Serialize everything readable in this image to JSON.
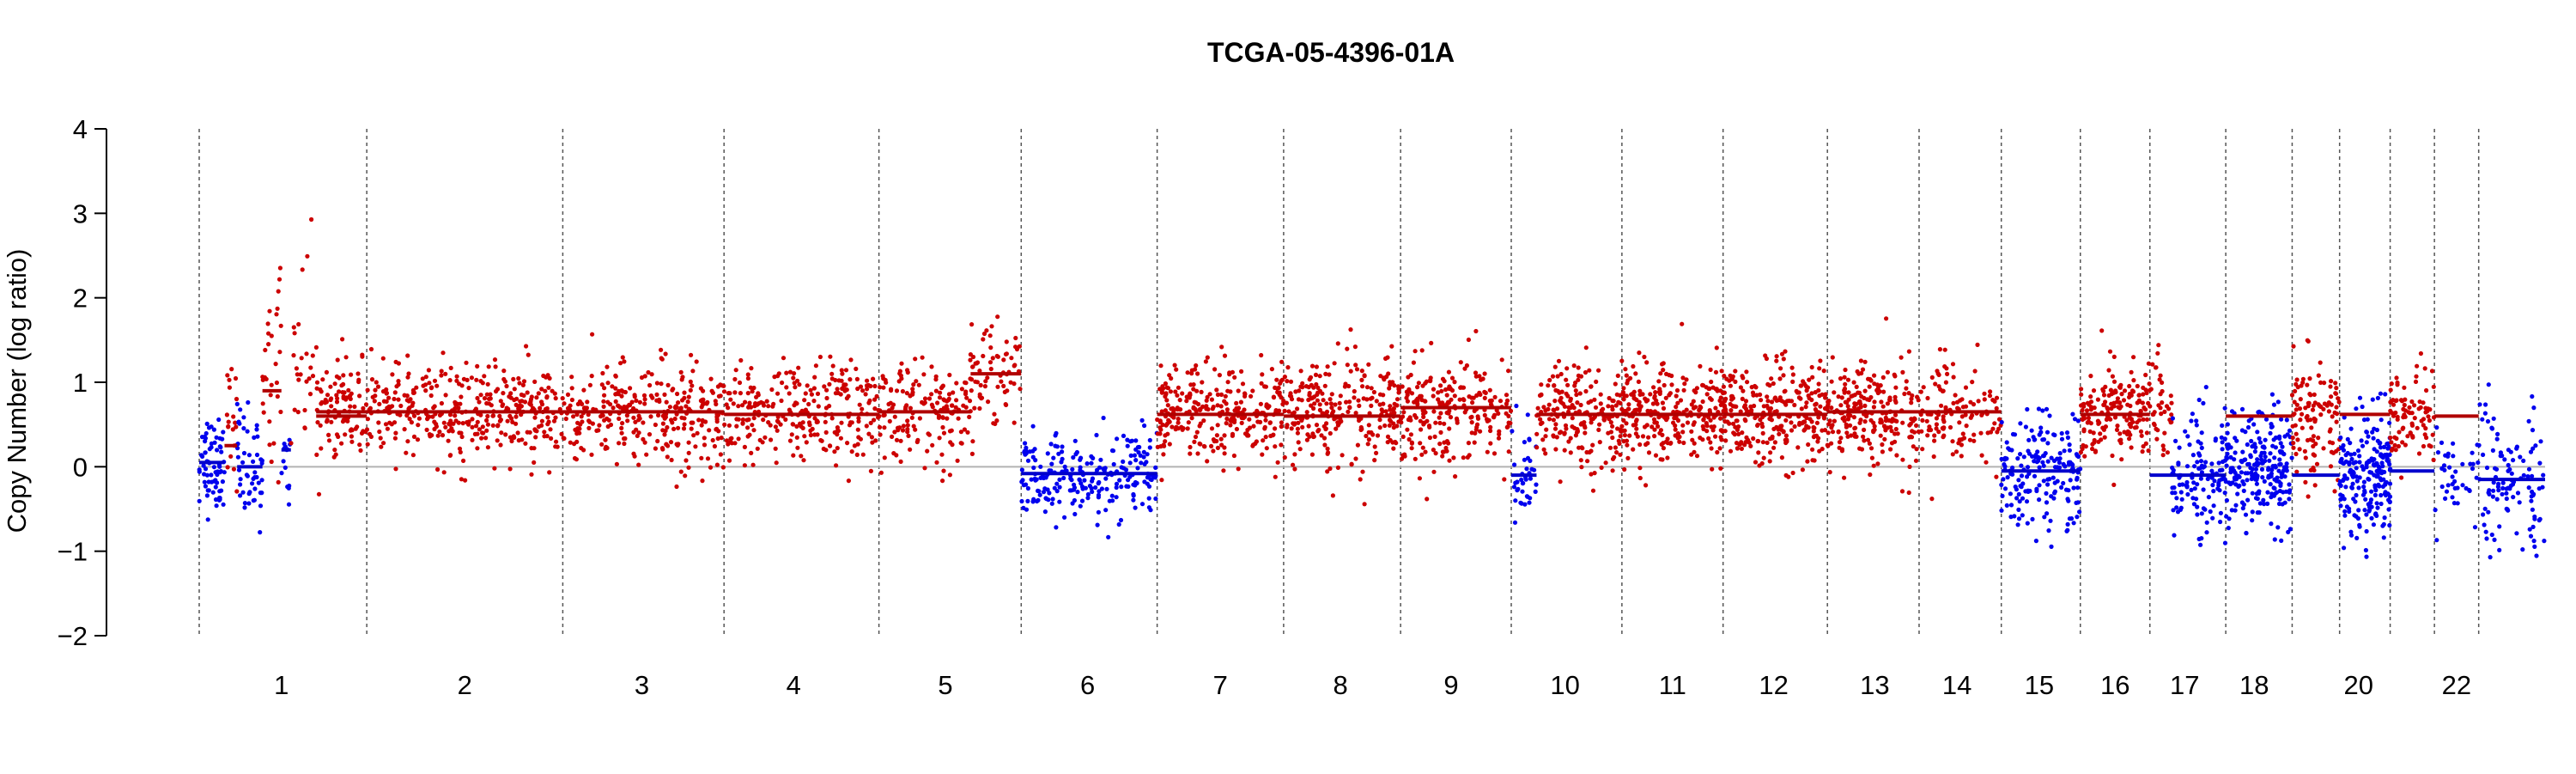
{
  "chart_data": {
    "type": "scatter",
    "title": "TCGA-05-4396-01A",
    "xlabel": "",
    "ylabel": "Copy Number (log ratio)",
    "ylim": [
      -2,
      4
    ],
    "yticks": [
      -2,
      -1,
      0,
      1,
      2,
      3,
      4
    ],
    "baseline": 0,
    "colors": {
      "gain": "#cc0000",
      "loss": "#0000ee",
      "segment_gain": "#b00000",
      "segment_loss": "#0000cc",
      "baseline": "#b3b3b3",
      "separator": "#555555"
    },
    "x_unit": "genome position (relative)",
    "chromosome_boundaries": [
      0,
      5.3,
      11.5,
      16.6,
      21.5,
      26,
      30.3,
      34.3,
      38.0,
      41.5,
      45.0,
      48.2,
      51.5,
      54.4,
      57.0,
      59.5,
      61.7,
      64.1,
      66.2,
      67.7,
      69.3,
      70.7,
      72.1
    ],
    "chromosome_labels": [
      {
        "label": "1",
        "x": 2.6
      },
      {
        "label": "2",
        "x": 8.4
      },
      {
        "label": "3",
        "x": 14.0
      },
      {
        "label": "4",
        "x": 18.8
      },
      {
        "label": "5",
        "x": 23.6
      },
      {
        "label": "6",
        "x": 28.1
      },
      {
        "label": "7",
        "x": 32.3
      },
      {
        "label": "8",
        "x": 36.1
      },
      {
        "label": "9",
        "x": 39.6
      },
      {
        "label": "10",
        "x": 43.2
      },
      {
        "label": "11",
        "x": 46.6
      },
      {
        "label": "12",
        "x": 49.8
      },
      {
        "label": "13",
        "x": 53.0
      },
      {
        "label": "14",
        "x": 55.6
      },
      {
        "label": "15",
        "x": 58.2
      },
      {
        "label": "16",
        "x": 60.6
      },
      {
        "label": "17",
        "x": 62.8
      },
      {
        "label": "18",
        "x": 65.0
      },
      {
        "label": "20",
        "x": 68.3
      },
      {
        "label": "22",
        "x": 71.4
      }
    ],
    "segments": [
      {
        "x0": 0.0,
        "x1": 0.8,
        "value": 0.05,
        "call": "loss"
      },
      {
        "x0": 0.8,
        "x1": 1.2,
        "value": 0.25,
        "call": "gain"
      },
      {
        "x0": 1.2,
        "x1": 2.0,
        "value": 0.0,
        "call": "loss"
      },
      {
        "x0": 2.0,
        "x1": 2.6,
        "value": 0.9,
        "call": "gain"
      },
      {
        "x0": 2.6,
        "x1": 2.9,
        "value": 0.2,
        "call": "loss"
      },
      {
        "x0": 3.7,
        "x1": 5.3,
        "value": 0.6,
        "call": "gain"
      },
      {
        "x0": 3.7,
        "x1": 11.5,
        "value": 0.65,
        "call": "gain"
      },
      {
        "x0": 11.5,
        "x1": 16.6,
        "value": 0.65,
        "call": "gain"
      },
      {
        "x0": 16.6,
        "x1": 21.5,
        "value": 0.62,
        "call": "gain"
      },
      {
        "x0": 21.5,
        "x1": 24.4,
        "value": 0.65,
        "call": "gain"
      },
      {
        "x0": 24.4,
        "x1": 26.0,
        "value": 1.1,
        "call": "gain"
      },
      {
        "x0": 26.0,
        "x1": 30.3,
        "value": -0.08,
        "call": "loss"
      },
      {
        "x0": 30.3,
        "x1": 34.3,
        "value": 0.62,
        "call": "gain"
      },
      {
        "x0": 34.3,
        "x1": 38.0,
        "value": 0.6,
        "call": "gain"
      },
      {
        "x0": 38.0,
        "x1": 41.5,
        "value": 0.7,
        "call": "gain"
      },
      {
        "x0": 41.5,
        "x1": 42.3,
        "value": -0.1,
        "call": "loss"
      },
      {
        "x0": 42.3,
        "x1": 45.0,
        "value": 0.62,
        "call": "gain"
      },
      {
        "x0": 45.0,
        "x1": 48.2,
        "value": 0.62,
        "call": "gain"
      },
      {
        "x0": 48.2,
        "x1": 51.5,
        "value": 0.62,
        "call": "gain"
      },
      {
        "x0": 51.5,
        "x1": 54.4,
        "value": 0.65,
        "call": "gain"
      },
      {
        "x0": 54.4,
        "x1": 57.0,
        "value": 0.65,
        "call": "gain"
      },
      {
        "x0": 57.0,
        "x1": 59.5,
        "value": -0.05,
        "call": "loss"
      },
      {
        "x0": 59.5,
        "x1": 61.7,
        "value": 0.62,
        "call": "gain"
      },
      {
        "x0": 61.7,
        "x1": 64.1,
        "value": -0.1,
        "call": "loss"
      },
      {
        "x0": 64.1,
        "x1": 66.2,
        "value": 0.6,
        "call": "gain"
      },
      {
        "x0": 66.2,
        "x1": 67.7,
        "value": -0.1,
        "call": "loss"
      },
      {
        "x0": 67.7,
        "x1": 69.3,
        "value": 0.62,
        "call": "gain"
      },
      {
        "x0": 69.3,
        "x1": 70.7,
        "value": -0.05,
        "call": "loss"
      },
      {
        "x0": 70.7,
        "x1": 72.1,
        "value": 0.6,
        "call": "gain"
      },
      {
        "x0": 72.1,
        "x1": 73.1,
        "value": -0.15,
        "call": "loss"
      },
      {
        "x0": 73.1,
        "x1": 74.2,
        "value": -0.15,
        "call": "loss"
      }
    ],
    "point_regions": [
      {
        "x0": 0.0,
        "x1": 0.8,
        "mean": 0.05,
        "sd": 0.28,
        "n": 70,
        "call": "loss"
      },
      {
        "x0": 0.8,
        "x1": 1.2,
        "mean": 0.5,
        "sd": 0.35,
        "n": 20,
        "call": "gain"
      },
      {
        "x0": 1.2,
        "x1": 2.0,
        "mean": 0.0,
        "sd": 0.35,
        "n": 50,
        "call": "loss"
      },
      {
        "x0": 2.0,
        "x1": 2.6,
        "mean": 1.2,
        "sd": 0.6,
        "n": 30,
        "call": "gain"
      },
      {
        "x0": 2.6,
        "x1": 2.9,
        "mean": 0.1,
        "sd": 0.3,
        "n": 14,
        "call": "loss"
      },
      {
        "x0": 2.9,
        "x1": 3.6,
        "mean": 1.2,
        "sd": 0.6,
        "n": 25,
        "call": "gain"
      },
      {
        "x0": 3.7,
        "x1": 11.5,
        "mean": 0.65,
        "sd": 0.28,
        "n": 460,
        "call": "gain"
      },
      {
        "x0": 11.5,
        "x1": 16.6,
        "mean": 0.62,
        "sd": 0.3,
        "n": 300,
        "call": "gain"
      },
      {
        "x0": 16.6,
        "x1": 21.5,
        "mean": 0.62,
        "sd": 0.3,
        "n": 270,
        "call": "gain"
      },
      {
        "x0": 21.5,
        "x1": 24.4,
        "mean": 0.62,
        "sd": 0.3,
        "n": 160,
        "call": "gain"
      },
      {
        "x0": 24.4,
        "x1": 26.0,
        "mean": 1.15,
        "sd": 0.3,
        "n": 70,
        "call": "gain"
      },
      {
        "x0": 26.0,
        "x1": 30.3,
        "mean": -0.1,
        "sd": 0.25,
        "n": 230,
        "call": "loss"
      },
      {
        "x0": 30.3,
        "x1": 34.3,
        "mean": 0.62,
        "sd": 0.32,
        "n": 280,
        "call": "gain"
      },
      {
        "x0": 34.3,
        "x1": 38.0,
        "mean": 0.62,
        "sd": 0.32,
        "n": 250,
        "call": "gain"
      },
      {
        "x0": 38.0,
        "x1": 41.5,
        "mean": 0.7,
        "sd": 0.32,
        "n": 230,
        "call": "gain"
      },
      {
        "x0": 41.5,
        "x1": 42.3,
        "mean": -0.1,
        "sd": 0.3,
        "n": 40,
        "call": "loss"
      },
      {
        "x0": 42.3,
        "x1": 45.0,
        "mean": 0.62,
        "sd": 0.3,
        "n": 200,
        "call": "gain"
      },
      {
        "x0": 45.0,
        "x1": 48.2,
        "mean": 0.62,
        "sd": 0.3,
        "n": 260,
        "call": "gain"
      },
      {
        "x0": 48.2,
        "x1": 51.5,
        "mean": 0.62,
        "sd": 0.3,
        "n": 270,
        "call": "gain"
      },
      {
        "x0": 51.5,
        "x1": 54.4,
        "mean": 0.62,
        "sd": 0.3,
        "n": 230,
        "call": "gain"
      },
      {
        "x0": 54.4,
        "x1": 57.0,
        "mean": 0.62,
        "sd": 0.32,
        "n": 120,
        "call": "gain"
      },
      {
        "x0": 57.0,
        "x1": 59.5,
        "mean": -0.05,
        "sd": 0.35,
        "n": 180,
        "call": "loss"
      },
      {
        "x0": 59.5,
        "x1": 61.7,
        "mean": 0.62,
        "sd": 0.3,
        "n": 170,
        "call": "gain"
      },
      {
        "x0": 61.7,
        "x1": 62.4,
        "mean": 0.65,
        "sd": 0.4,
        "n": 40,
        "call": "gain"
      },
      {
        "x0": 62.4,
        "x1": 64.1,
        "mean": -0.1,
        "sd": 0.35,
        "n": 120,
        "call": "loss"
      },
      {
        "x0": 64.1,
        "x1": 66.2,
        "mean": -0.05,
        "sd": 0.35,
        "n": 230,
        "call": "loss"
      },
      {
        "x0": 66.2,
        "x1": 67.7,
        "mean": 0.6,
        "sd": 0.35,
        "n": 110,
        "call": "gain"
      },
      {
        "x0": 67.7,
        "x1": 69.3,
        "mean": -0.1,
        "sd": 0.35,
        "n": 210,
        "call": "loss"
      },
      {
        "x0": 69.3,
        "x1": 70.7,
        "mean": 0.6,
        "sd": 0.3,
        "n": 90,
        "call": "gain"
      },
      {
        "x0": 70.7,
        "x1": 72.1,
        "mean": -0.1,
        "sd": 0.3,
        "n": 40,
        "call": "loss"
      },
      {
        "x0": 72.1,
        "x1": 74.2,
        "mean": -0.15,
        "sd": 0.4,
        "n": 110,
        "call": "loss"
      }
    ],
    "x_range": [
      0,
      74.2
    ]
  }
}
